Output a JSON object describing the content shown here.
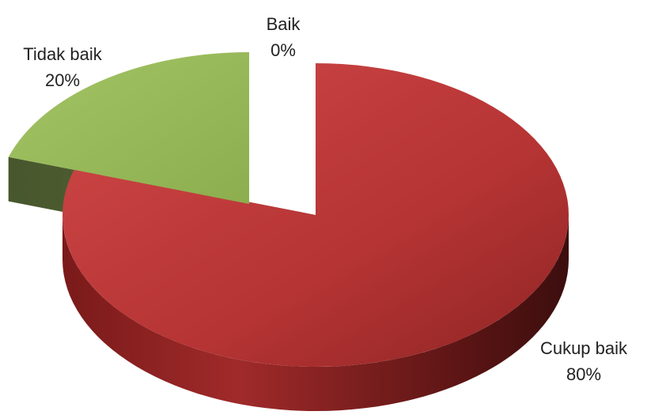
{
  "chart_data": {
    "type": "pie",
    "style": "3d-exploded",
    "slices": [
      {
        "label": "Baik",
        "value": 0,
        "percent_label": "0%",
        "color": "#4f81bd"
      },
      {
        "label": "Cukup baik",
        "value": 80,
        "percent_label": "80%",
        "color": "#c0393b"
      },
      {
        "label": "Tidak baik",
        "value": 20,
        "percent_label": "20%",
        "color": "#9bbb59"
      }
    ],
    "legend": "none"
  }
}
